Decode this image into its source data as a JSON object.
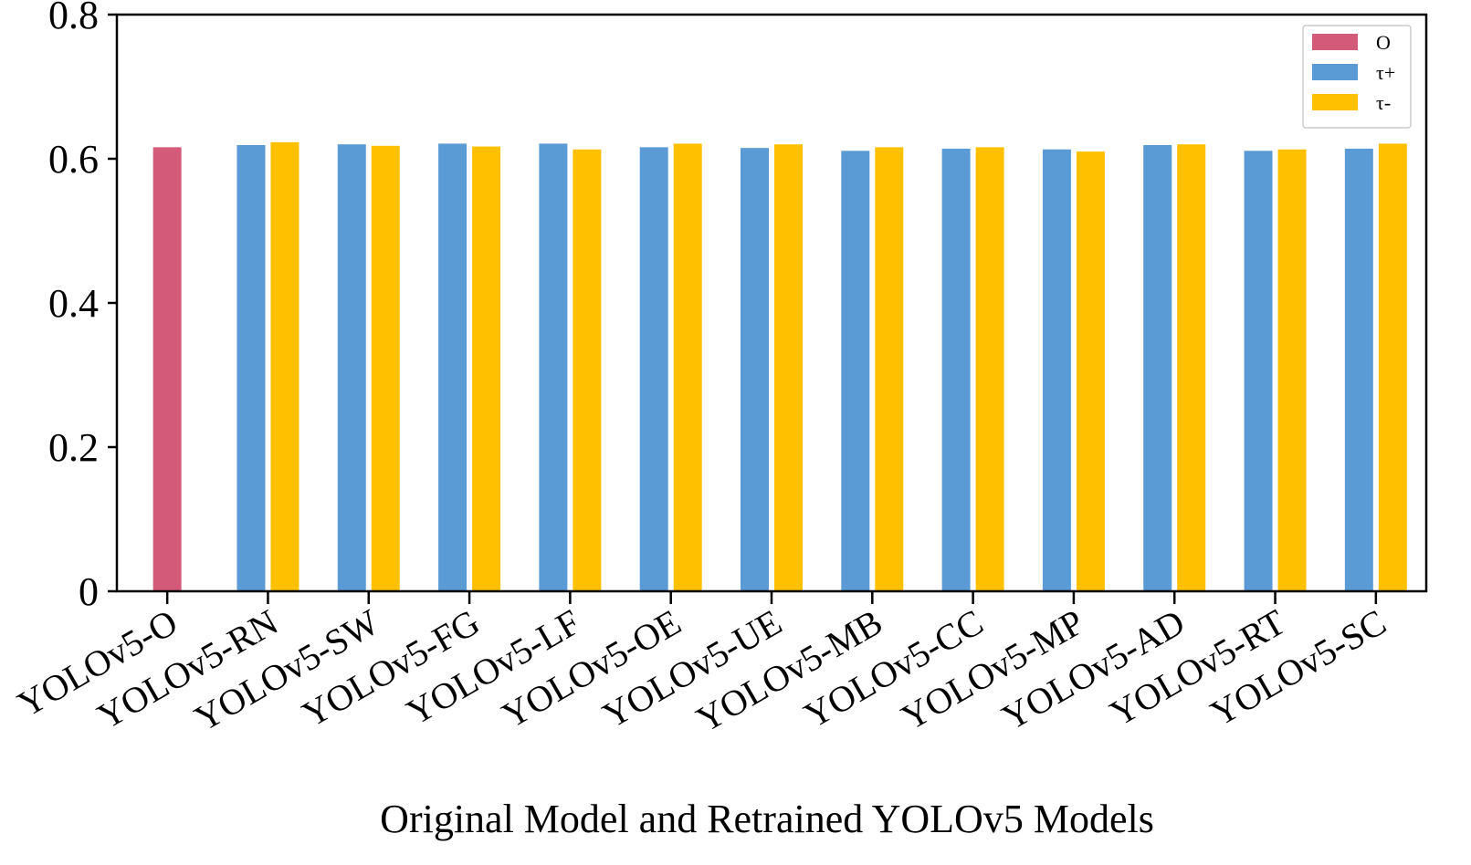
{
  "chart_data": {
    "type": "bar",
    "title": "",
    "xlabel": "Original Model and Retrained YOLOv5 Models",
    "ylabel": "",
    "ylim": [
      0,
      0.8
    ],
    "yticks": [
      0,
      0.2,
      0.4,
      0.6,
      0.8
    ],
    "ytick_labels": [
      "0",
      "0.2",
      "0.4",
      "0.6",
      "0.8"
    ],
    "legend_position": "top-right",
    "categories": [
      "YOLOv5-O",
      "YOLOv5-RN",
      "YOLOv5-SW",
      "YOLOv5-FG",
      "YOLOv5-LF",
      "YOLOv5-OE",
      "YOLOv5-UE",
      "YOLOv5-MB",
      "YOLOv5-CC",
      "YOLOv5-MP",
      "YOLOv5-AD",
      "YOLOv5-RT",
      "YOLOv5-SC"
    ],
    "series": [
      {
        "name": "O",
        "color": "#d45a7a",
        "values": [
          0.616,
          null,
          null,
          null,
          null,
          null,
          null,
          null,
          null,
          null,
          null,
          null,
          null
        ]
      },
      {
        "name": "τ+",
        "color": "#5b9bd5",
        "values": [
          null,
          0.619,
          0.62,
          0.621,
          0.621,
          0.616,
          0.615,
          0.611,
          0.614,
          0.613,
          0.619,
          0.611,
          0.614
        ]
      },
      {
        "name": "τ-",
        "color": "#ffc000",
        "values": [
          null,
          0.623,
          0.618,
          0.617,
          0.613,
          0.621,
          0.62,
          0.616,
          0.616,
          0.61,
          0.62,
          0.613,
          0.621
        ]
      }
    ]
  }
}
